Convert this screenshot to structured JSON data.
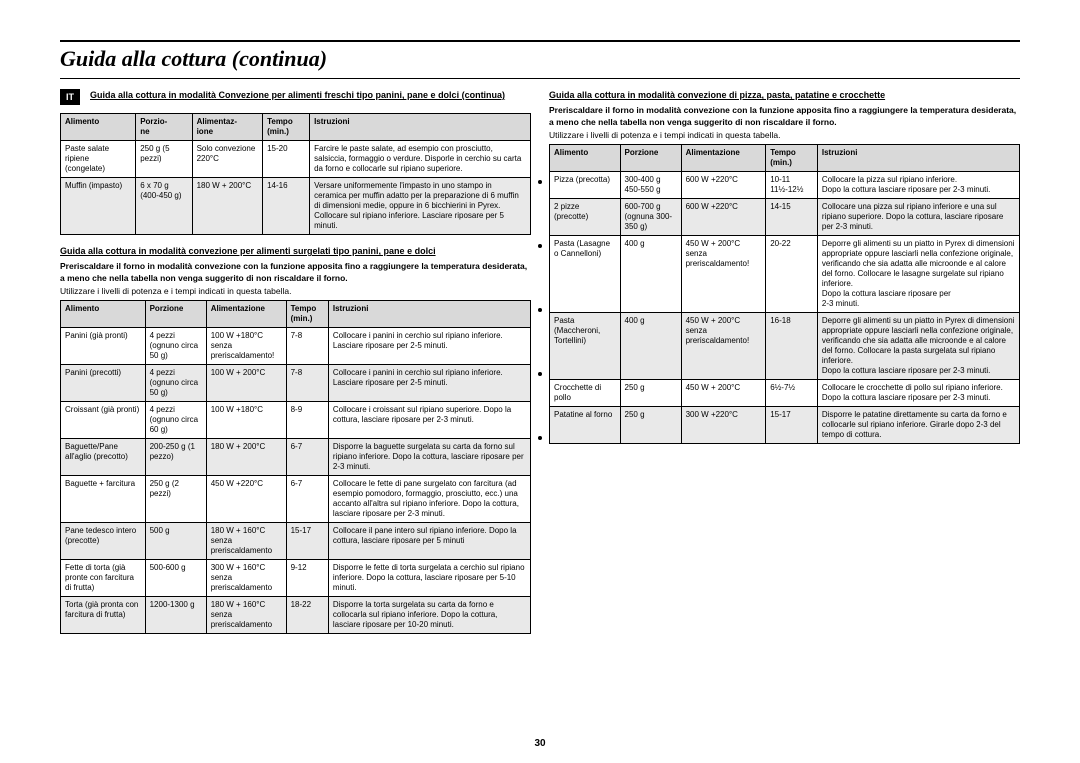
{
  "page_title": "Guida alla cottura (continua)",
  "page_number": "30",
  "lang_badge": "IT",
  "left": {
    "heading1": "Guida alla cottura in modalità Convezione per alimenti freschi tipo panini, pane e dolci (continua)",
    "table1": {
      "headers": [
        "Alimento",
        "Porzio-\nne",
        "Alimentaz-\nione",
        "Tempo\n(min.)",
        "Istruzioni"
      ],
      "widths": [
        "16%",
        "12%",
        "15%",
        "10%",
        "47%"
      ],
      "rows": [
        {
          "alt": false,
          "cells": [
            "Paste salate ripiene (congelate)",
            "250 g (5 pezzi)",
            "Solo convezione 220°C",
            "15-20",
            "Farcire le paste salate, ad esempio con prosciutto, salsiccia, formaggio o verdure. Disporle in cerchio su carta da forno e collocarle sul ripiano superiore."
          ]
        },
        {
          "alt": true,
          "cells": [
            "Muffin (impasto)",
            "6 x 70 g (400-450 g)",
            "180 W + 200°C",
            "14-16",
            "Versare uniformemente l'impasto in uno stampo in ceramica per muffin adatto per la preparazione di 6 muffin di dimensioni medie, oppure in 6 bicchierini in Pyrex. Collocare sul ripiano inferiore. Lasciare riposare per 5 minuti."
          ]
        }
      ]
    },
    "heading2": "Guida alla cottura in modalità convezione per alimenti surgelati tipo panini, pane e dolci",
    "intro2": "Preriscaldare il forno in modalità convezione con la funzione apposita fino a raggiungere la temperatura desiderata, a meno che nella tabella non venga suggerito di non riscaldare il forno.",
    "intro2b": "Utilizzare i livelli di potenza e i tempi indicati in questa tabella.",
    "table2": {
      "headers": [
        "Alimento",
        "Porzione",
        "Alimentazione",
        "Tempo\n(min.)",
        "Istruzioni"
      ],
      "widths": [
        "18%",
        "13%",
        "17%",
        "9%",
        "43%"
      ],
      "rows": [
        {
          "alt": false,
          "cells": [
            "Panini (già pronti)",
            "4 pezzi (ognuno circa 50 g)",
            "100 W +180°C senza preriscaldamento!",
            "7-8",
            "Collocare i panini in cerchio sul ripiano inferiore.\nLasciare riposare per 2-5 minuti."
          ]
        },
        {
          "alt": true,
          "cells": [
            "Panini (precotti)",
            "4 pezzi (ognuno circa 50 g)",
            "100 W + 200°C",
            "7-8",
            "Collocare i panini in cerchio sul ripiano inferiore.\nLasciare riposare per 2-5 minuti."
          ]
        },
        {
          "alt": false,
          "cells": [
            "Croissant (già pronti)",
            "4 pezzi (ognuno circa 60 g)",
            "100 W +180°C",
            "8-9",
            "Collocare i croissant sul ripiano superiore. Dopo la cottura, lasciare riposare per 2-3 minuti."
          ]
        },
        {
          "alt": true,
          "cells": [
            "Baguette/Pane all'aglio (precotto)",
            "200-250 g (1 pezzo)",
            "180 W + 200°C",
            "6-7",
            "Disporre la baguette surgelata su carta da forno sul ripiano inferiore. Dopo la cottura, lasciare riposare per 2-3 minuti."
          ]
        },
        {
          "alt": false,
          "cells": [
            "Baguette + farcitura",
            "250 g (2 pezzi)",
            "450 W +220°C",
            "6-7",
            "Collocare le fette di pane surgelato con farcitura (ad esempio pomodoro, formaggio, prosciutto, ecc.) una accanto all'altra sul ripiano inferiore. Dopo la cottura, lasciare riposare per 2-3 minuti."
          ]
        },
        {
          "alt": true,
          "cells": [
            "Pane tedesco intero (precotte)",
            "500 g",
            "180 W + 160°C senza preriscaldamento",
            "15-17",
            "Collocare il pane intero sul ripiano inferiore. Dopo la cottura, lasciare riposare per 5 minuti"
          ]
        },
        {
          "alt": false,
          "cells": [
            "Fette di torta (già pronte con farcitura di frutta)",
            "500-600 g",
            "300 W + 160°C senza preriscaldamento",
            "9-12",
            "Disporre le fette di torta surgelata a cerchio sul ripiano inferiore. Dopo la cottura, lasciare riposare per 5-10 minuti."
          ]
        },
        {
          "alt": true,
          "cells": [
            "Torta (già pronta con farcitura di frutta)",
            "1200-1300 g",
            "180 W + 160°C senza preriscaldamento",
            "18-22",
            "Disporre la torta surgelata su carta da forno e collocarla sul ripiano inferiore. Dopo la cottura, lasciare riposare per 10-20 minuti."
          ]
        }
      ]
    }
  },
  "right": {
    "heading1": "Guida alla cottura in modalità convezione di pizza, pasta, patatine e crocchette",
    "intro1": "Preriscaldare il forno in modalità convezione con la funzione apposita fino a raggiungere la temperatura desiderata, a meno che nella tabella non venga suggerito di non riscaldare il forno.",
    "intro1b": "Utilizzare i livelli di potenza e i tempi indicati in questa tabella.",
    "table1": {
      "headers": [
        "Alimento",
        "Porzione",
        "Alimentazione",
        "Tempo\n(min.)",
        "Istruzioni"
      ],
      "widths": [
        "15%",
        "13%",
        "18%",
        "11%",
        "43%"
      ],
      "rows": [
        {
          "alt": false,
          "cells": [
            "Pizza (precotta)",
            "300-400 g 450-550 g",
            "600 W +220°C",
            "10-11  11½-12½",
            "Collocare la pizza sul ripiano inferiore.\nDopo la cottura lasciare riposare per 2-3 minuti."
          ]
        },
        {
          "alt": true,
          "cells": [
            "2 pizze (precotte)",
            "600-700 g (ognuna 300-350 g)",
            "600 W +220°C",
            "14-15",
            "Collocare una pizza sul ripiano inferiore e una sul ripiano superiore. Dopo la cottura, lasciare riposare per 2-3 minuti."
          ]
        },
        {
          "alt": false,
          "cells": [
            "Pasta (Lasagne o Cannelloni)",
            "400 g",
            "450 W + 200°C senza preriscaldamento!",
            "20-22",
            "Deporre gli alimenti su un piatto in Pyrex di dimensioni appropriate oppure lasciarli nella confezione originale, verificando che sia adatta alle microonde e al calore del forno. Collocare le lasagne surgelate sul ripiano inferiore.\nDopo la cottura lasciare riposare per\n2-3 minuti."
          ]
        },
        {
          "alt": true,
          "cells": [
            "Pasta (Maccheroni, Tortellini)",
            "400 g",
            "450 W + 200°C senza preriscaldamento!",
            "16-18",
            "Deporre gli alimenti su un piatto in Pyrex di dimensioni appropriate oppure lasciarli nella confezione originale, verificando che sia adatta alle microonde e al calore del forno. Collocare la pasta surgelata sul ripiano inferiore.\nDopo la cottura lasciare riposare per 2-3 minuti."
          ]
        },
        {
          "alt": false,
          "cells": [
            "Crocchette di pollo",
            "250 g",
            "450 W + 200°C",
            "6½-7½",
            "Collocare le crocchette di pollo sul ripiano inferiore.\nDopo la cottura lasciare riposare per 2-3 minuti."
          ]
        },
        {
          "alt": true,
          "cells": [
            "Patatine al forno",
            "250 g",
            "300 W +220°C",
            "15-17",
            "Disporre le patatine direttamente su carta da forno e collocarle sul ripiano inferiore. Girarle dopo 2-3 del tempo di cottura."
          ]
        }
      ]
    }
  }
}
